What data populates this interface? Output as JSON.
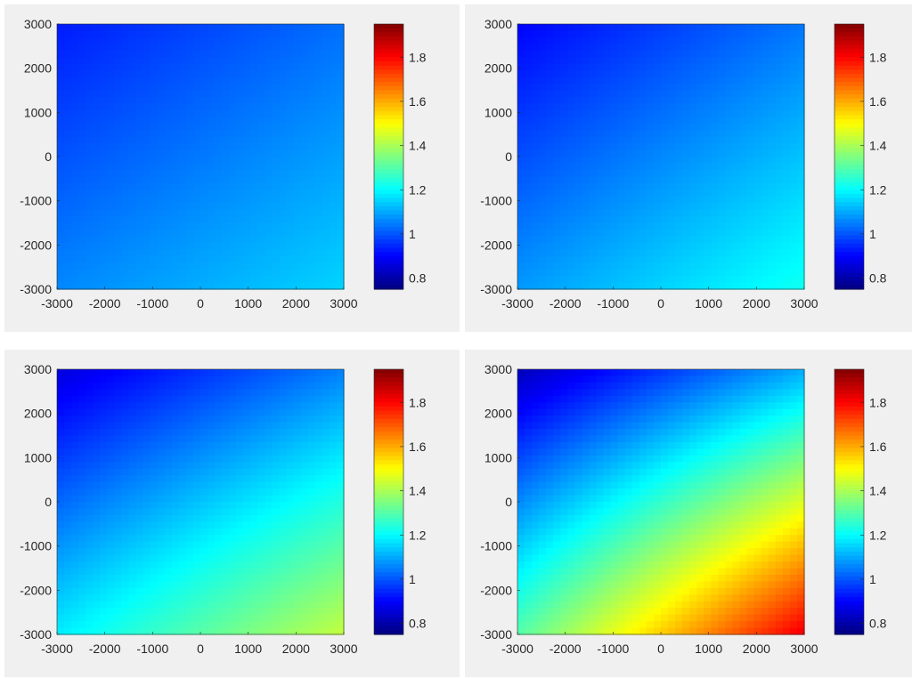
{
  "chart_data": [
    {
      "type": "heatmap",
      "x_ticks": [
        "-3000",
        "-2000",
        "-1000",
        "0",
        "1000",
        "2000",
        "3000"
      ],
      "y_ticks": [
        "3000",
        "2000",
        "1000",
        "0",
        "-1000",
        "-2000",
        "-3000"
      ],
      "xlim": [
        -3000,
        3000
      ],
      "ylim": [
        -3000,
        3000
      ],
      "colorbar": {
        "ticks": [
          "1.8",
          "1.6",
          "1.4",
          "1.2",
          "1",
          "0.8"
        ],
        "range": [
          0.75,
          1.95
        ],
        "colormap": "jet"
      },
      "value_corners": {
        "top_left": 0.93,
        "top_right": 1.03,
        "bottom_left": 1.06,
        "bottom_right": 1.15
      },
      "grid": false
    },
    {
      "type": "heatmap",
      "x_ticks": [
        "-3000",
        "-2000",
        "-1000",
        "0",
        "1000",
        "2000",
        "3000"
      ],
      "y_ticks": [
        "3000",
        "2000",
        "1000",
        "0",
        "-1000",
        "-2000",
        "-3000"
      ],
      "xlim": [
        -3000,
        3000
      ],
      "ylim": [
        -3000,
        3000
      ],
      "colorbar": {
        "ticks": [
          "1.8",
          "1.6",
          "1.4",
          "1.2",
          "1",
          "0.8"
        ],
        "range": [
          0.75,
          1.95
        ],
        "colormap": "jet"
      },
      "value_corners": {
        "top_left": 0.9,
        "top_right": 1.04,
        "bottom_left": 1.08,
        "bottom_right": 1.22
      },
      "grid": false
    },
    {
      "type": "heatmap",
      "x_ticks": [
        "-3000",
        "-2000",
        "-1000",
        "0",
        "1000",
        "2000",
        "3000"
      ],
      "y_ticks": [
        "3000",
        "2000",
        "1000",
        "0",
        "-1000",
        "-2000",
        "-3000"
      ],
      "xlim": [
        -3000,
        3000
      ],
      "ylim": [
        -3000,
        3000
      ],
      "colorbar": {
        "ticks": [
          "1.8",
          "1.6",
          "1.4",
          "1.2",
          "1",
          "0.8"
        ],
        "range": [
          0.75,
          1.95
        ],
        "colormap": "jet"
      },
      "value_corners": {
        "top_left": 0.86,
        "top_right": 1.05,
        "bottom_left": 1.18,
        "bottom_right": 1.43
      },
      "grid": false
    },
    {
      "type": "heatmap",
      "x_ticks": [
        "-3000",
        "-2000",
        "-1000",
        "0",
        "1000",
        "2000",
        "3000"
      ],
      "y_ticks": [
        "3000",
        "2000",
        "1000",
        "0",
        "-1000",
        "-2000",
        "-3000"
      ],
      "xlim": [
        -3000,
        3000
      ],
      "ylim": [
        -3000,
        3000
      ],
      "colorbar": {
        "ticks": [
          "1.8",
          "1.6",
          "1.4",
          "1.2",
          "1",
          "0.8"
        ],
        "range": [
          0.75,
          1.95
        ],
        "colormap": "jet"
      },
      "value_corners": {
        "top_left": 0.82,
        "top_right": 1.1,
        "bottom_left": 1.3,
        "bottom_right": 1.82
      },
      "grid": false
    }
  ]
}
